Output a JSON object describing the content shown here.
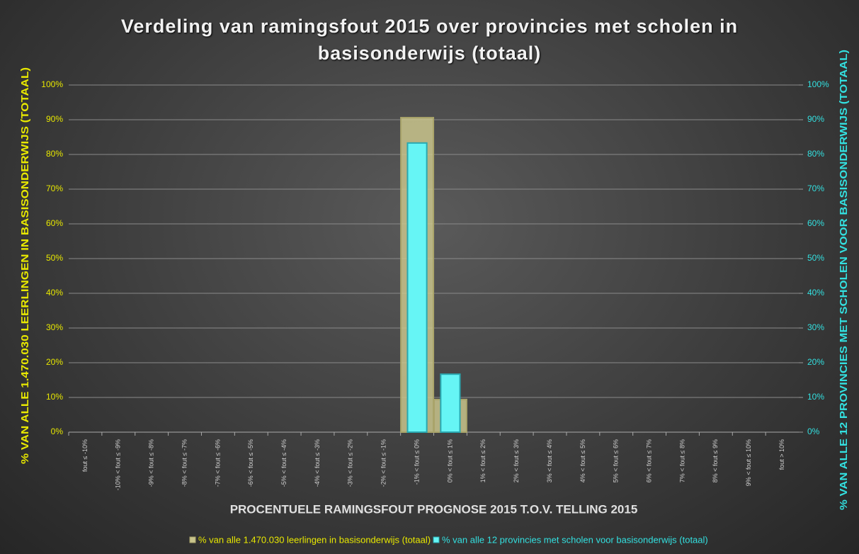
{
  "chart_data": {
    "type": "bar",
    "title": "Verdeling van ramingsfout 2015 over provincies met scholen in basisonderwijs (totaal)",
    "xlabel": "PROCENTUELE RAMINGSFOUT PROGNOSE 2015 T.O.V. TELLING 2015",
    "ylabel": "% VAN ALLE 1.470.030 LEERLINGEN IN BASISONDERWIJS (TOTAAL)",
    "y2label": "% VAN ALLE 12 PROVINCIES MET SCHOLEN VOOR BASISONDERWIJS (TOTAAL)",
    "categories": [
      "fout ≤ -10%",
      "-10% < fout ≤ -9%",
      "-9% < fout ≤ -8%",
      "-8% < fout ≤ -7%",
      "-7% < fout ≤ -6%",
      "-6% < fout ≤ -5%",
      "-5% < fout ≤ -4%",
      "-4% < fout ≤ -3%",
      "-3% < fout ≤ -2%",
      "-2% < fout ≤ -1%",
      "-1% < fout ≤ 0%",
      "0% < fout ≤ 1%",
      "1% < fout ≤ 2%",
      "2% < fout ≤ 3%",
      "3% < fout ≤ 4%",
      "4% < fout ≤ 5%",
      "5% < fout ≤ 6%",
      "6% < fout ≤ 7%",
      "7% < fout ≤ 8%",
      "8% < fout ≤ 9%",
      "9% < fout ≤ 10%",
      "fout > 10%"
    ],
    "series": [
      {
        "name": "% van alle 1.470.030 leerlingen in basisonderwijs (totaal)",
        "color": "#c9c48c",
        "values": [
          0,
          0,
          0,
          0,
          0,
          0,
          0,
          0,
          0,
          0,
          90.6,
          9.4,
          0,
          0,
          0,
          0,
          0,
          0,
          0,
          0,
          0,
          0
        ]
      },
      {
        "name": "% van alle 12 provincies met scholen voor basisonderwijs (totaal)",
        "color": "#66f5f5",
        "axis": "y2",
        "values": [
          0,
          0,
          0,
          0,
          0,
          0,
          0,
          0,
          0,
          0,
          83.3,
          16.7,
          0,
          0,
          0,
          0,
          0,
          0,
          0,
          0,
          0,
          0
        ]
      }
    ],
    "ylim": [
      0,
      100
    ],
    "yticks": [
      {
        "value": 0,
        "label": "0%"
      },
      {
        "value": 10,
        "label": "10%"
      },
      {
        "value": 20,
        "label": "20%"
      },
      {
        "value": 30,
        "label": "30%"
      },
      {
        "value": 40,
        "label": "40%"
      },
      {
        "value": 50,
        "label": "50%"
      },
      {
        "value": 60,
        "label": "60%"
      },
      {
        "value": 70,
        "label": "70%"
      },
      {
        "value": 80,
        "label": "80%"
      },
      {
        "value": 90,
        "label": "90%"
      },
      {
        "value": 100,
        "label": "100%"
      }
    ],
    "y2lim": [
      0,
      100
    ],
    "y2ticks": [
      {
        "value": 0,
        "label": "0%"
      },
      {
        "value": 10,
        "label": "10%"
      },
      {
        "value": 20,
        "label": "20%"
      },
      {
        "value": 30,
        "label": "30%"
      },
      {
        "value": 40,
        "label": "40%"
      },
      {
        "value": 50,
        "label": "50%"
      },
      {
        "value": 60,
        "label": "60%"
      },
      {
        "value": 70,
        "label": "70%"
      },
      {
        "value": 80,
        "label": "80%"
      },
      {
        "value": 90,
        "label": "90%"
      },
      {
        "value": 100,
        "label": "100%"
      }
    ],
    "grid": true
  }
}
